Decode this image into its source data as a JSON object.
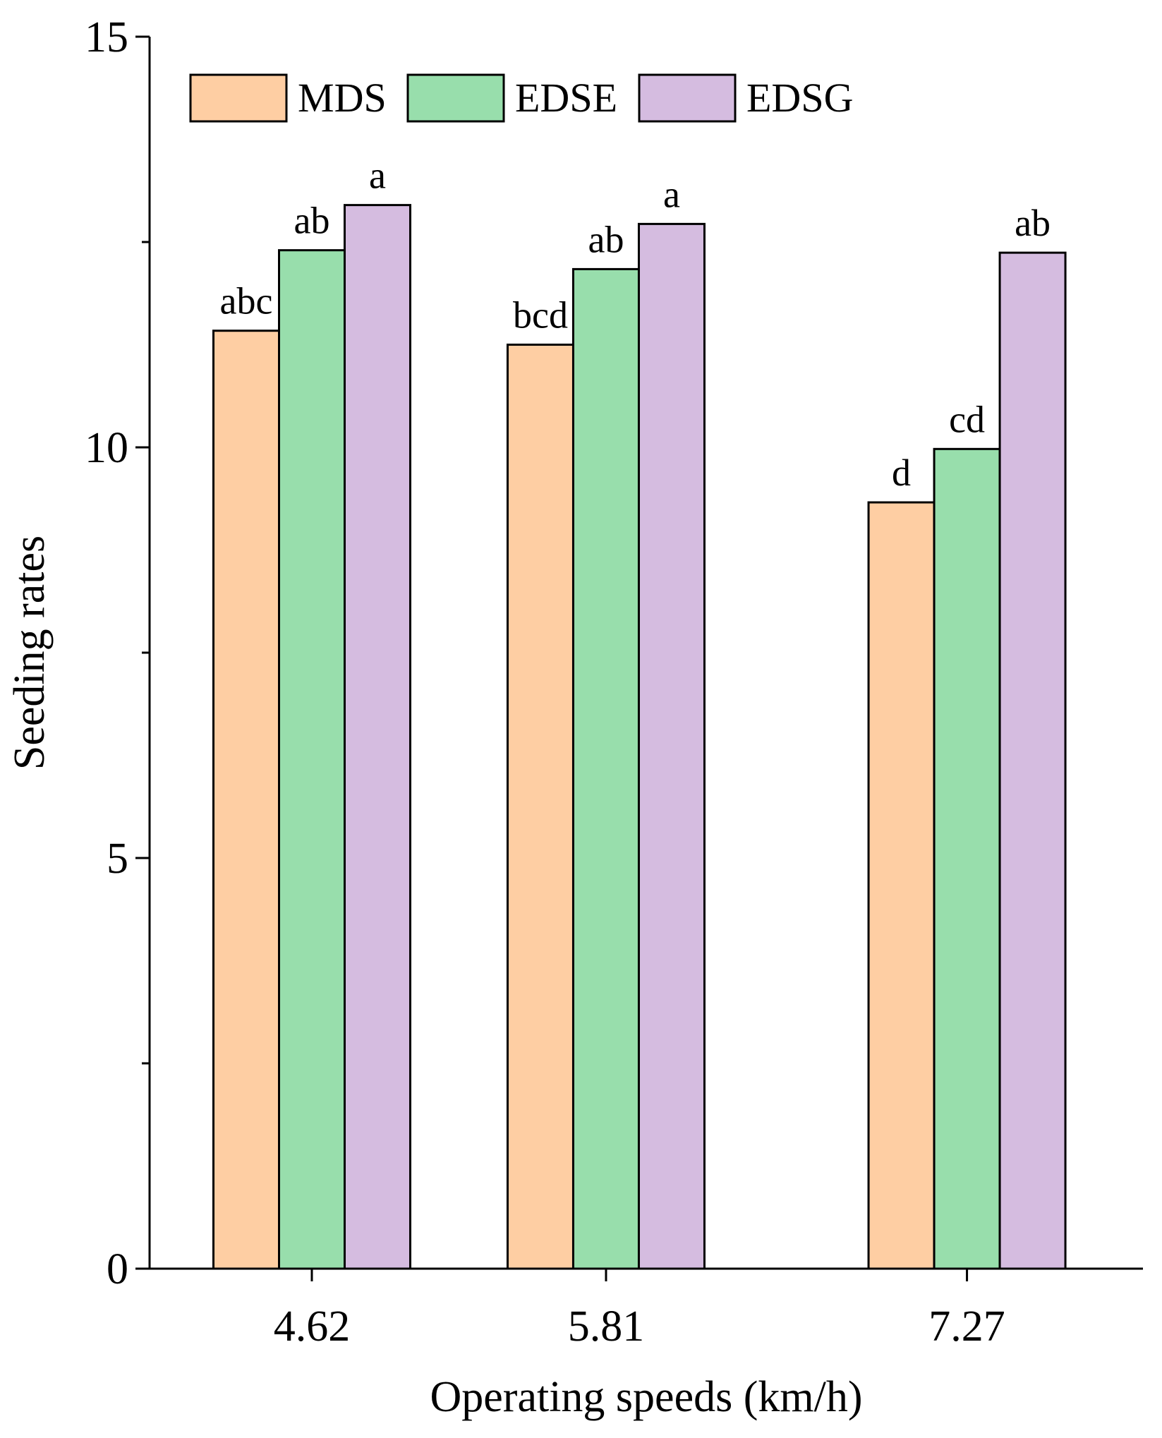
{
  "chart_data": {
    "type": "bar",
    "title": "",
    "xlabel": "Operating speeds (km/h)",
    "ylabel": "Seeding rates",
    "ylim": [
      0,
      15
    ],
    "yticks": [
      0,
      5,
      10,
      15
    ],
    "ytick_labels": [
      "0",
      "5",
      "10",
      "15"
    ],
    "minor_yticks": [
      2.5,
      7.5,
      12.5
    ],
    "categories": [
      "4.62",
      "5.81",
      "7.27"
    ],
    "x_positions": [
      4.62,
      5.81,
      7.27
    ],
    "grid": false,
    "legend_position": "top",
    "series": [
      {
        "name": "MDS",
        "color": "#FECEA3",
        "values": [
          11.42,
          11.25,
          9.33
        ],
        "labels": [
          "abc",
          "bcd",
          "d"
        ]
      },
      {
        "name": "EDSE",
        "color": "#98DEAC",
        "values": [
          12.4,
          12.17,
          9.98
        ],
        "labels": [
          "ab",
          "ab",
          "cd"
        ]
      },
      {
        "name": "EDSG",
        "color": "#D5BCE0",
        "values": [
          12.95,
          12.72,
          12.37
        ],
        "labels": [
          "a",
          "a",
          "ab"
        ]
      }
    ]
  }
}
